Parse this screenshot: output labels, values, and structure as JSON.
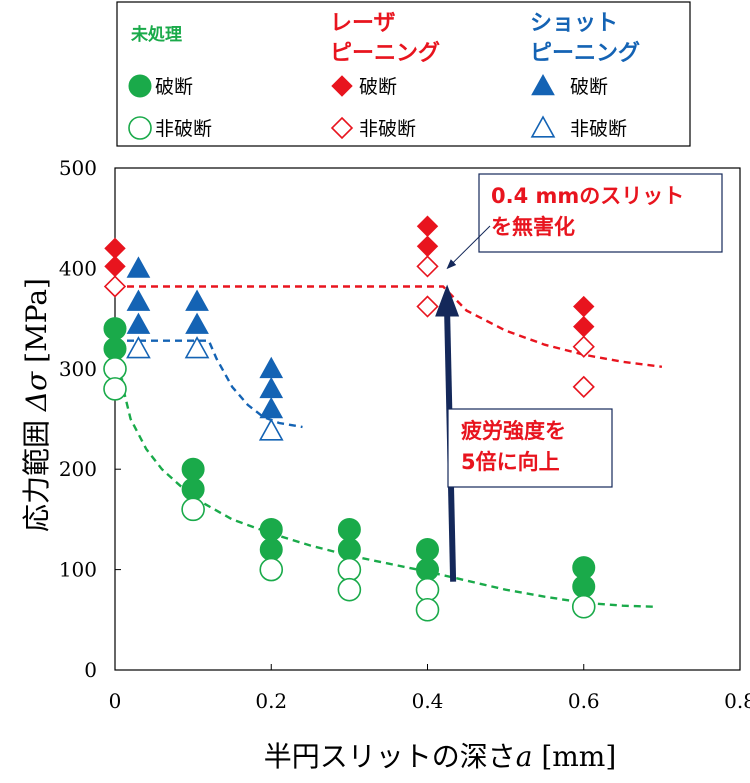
{
  "chart_data": {
    "type": "scatter",
    "xlabel": "半円スリットの深さ",
    "xlabel_var": "a",
    "xlabel_unit": "[mm]",
    "ylabel": "応力範囲",
    "ylabel_var": "Δσ",
    "ylabel_unit": "[MPa]",
    "xlim": [
      0,
      0.8
    ],
    "ylim": [
      0,
      500
    ],
    "x_ticks": [
      "0",
      "0.2",
      "0.4",
      "0.6",
      "0.8"
    ],
    "y_ticks": [
      "0",
      "100",
      "200",
      "300",
      "400",
      "500"
    ],
    "x_tick_values": [
      0,
      0.2,
      0.4,
      0.6,
      0.8
    ],
    "y_tick_values": [
      0,
      100,
      200,
      300,
      400,
      500
    ],
    "grid": false,
    "legend": {
      "placement": "top",
      "groups": [
        {
          "title": "未処理",
          "color": "#1aaa4a",
          "broken_label": "破断",
          "unbroken_label": "非破断",
          "marker": "circle"
        },
        {
          "title": "レーザ\nピーニング",
          "color": "#e8141e",
          "broken_label": "破断",
          "unbroken_label": "非破断",
          "marker": "diamond"
        },
        {
          "title": "ショット\nピーニング",
          "color": "#1463b4",
          "broken_label": "破断",
          "unbroken_label": "非破断",
          "marker": "triangle"
        }
      ]
    },
    "series": [
      {
        "name": "未処理 破断",
        "color": "#1aaa4a",
        "marker": "circle",
        "filled": true,
        "points": [
          [
            0,
            340
          ],
          [
            0,
            320
          ],
          [
            0.1,
            200
          ],
          [
            0.1,
            180
          ],
          [
            0.2,
            140
          ],
          [
            0.2,
            120
          ],
          [
            0.3,
            140
          ],
          [
            0.3,
            120
          ],
          [
            0.4,
            120
          ],
          [
            0.4,
            100
          ],
          [
            0.6,
            102
          ],
          [
            0.6,
            83
          ]
        ]
      },
      {
        "name": "未処理 非破断",
        "color": "#1aaa4a",
        "marker": "circle",
        "filled": false,
        "points": [
          [
            0,
            300
          ],
          [
            0,
            280
          ],
          [
            0.1,
            160
          ],
          [
            0.2,
            100
          ],
          [
            0.3,
            100
          ],
          [
            0.3,
            80
          ],
          [
            0.4,
            80
          ],
          [
            0.4,
            60
          ],
          [
            0.6,
            63
          ]
        ]
      },
      {
        "name": "レーザピーニング 破断",
        "color": "#e8141e",
        "marker": "diamond",
        "filled": true,
        "points": [
          [
            0,
            420
          ],
          [
            0,
            402
          ],
          [
            0.4,
            442
          ],
          [
            0.4,
            422
          ],
          [
            0.6,
            362
          ],
          [
            0.6,
            342
          ]
        ]
      },
      {
        "name": "レーザピーニング 非破断",
        "color": "#e8141e",
        "marker": "diamond",
        "filled": false,
        "points": [
          [
            0,
            382
          ],
          [
            0.4,
            402
          ],
          [
            0.4,
            362
          ],
          [
            0.6,
            322
          ],
          [
            0.6,
            282
          ]
        ]
      },
      {
        "name": "ショットピーニング 破断",
        "color": "#1463b4",
        "marker": "triangle",
        "filled": true,
        "points": [
          [
            0.03,
            400
          ],
          [
            0.03,
            367
          ],
          [
            0.03,
            344
          ],
          [
            0.105,
            367
          ],
          [
            0.105,
            344
          ],
          [
            0.2,
            300
          ],
          [
            0.2,
            280
          ],
          [
            0.2,
            260
          ]
        ]
      },
      {
        "name": "ショットピーニング 非破断",
        "color": "#1463b4",
        "marker": "triangle",
        "filled": false,
        "points": [
          [
            0.03,
            320
          ],
          [
            0.105,
            320
          ],
          [
            0.2,
            238
          ]
        ]
      }
    ],
    "trend_lines": [
      {
        "color": "#1aaa4a",
        "points": [
          [
            0.002,
            338
          ],
          [
            0.01,
            282
          ],
          [
            0.02,
            250
          ],
          [
            0.04,
            220
          ],
          [
            0.06,
            200
          ],
          [
            0.08,
            186
          ],
          [
            0.1,
            172
          ],
          [
            0.15,
            150
          ],
          [
            0.2,
            136
          ],
          [
            0.25,
            124
          ],
          [
            0.3,
            114
          ],
          [
            0.35,
            106
          ],
          [
            0.4,
            98
          ],
          [
            0.45,
            89
          ],
          [
            0.5,
            80
          ],
          [
            0.55,
            73
          ],
          [
            0.6,
            67
          ],
          [
            0.65,
            64
          ],
          [
            0.69,
            63
          ]
        ]
      },
      {
        "color": "#e8141e",
        "points": [
          [
            0,
            382
          ],
          [
            0.42,
            382
          ],
          [
            0.45,
            358
          ],
          [
            0.5,
            338
          ],
          [
            0.55,
            324
          ],
          [
            0.6,
            314
          ],
          [
            0.65,
            307
          ],
          [
            0.7,
            302
          ]
        ]
      },
      {
        "color": "#1463b4",
        "points": [
          [
            0,
            328
          ],
          [
            0.12,
            328
          ],
          [
            0.13,
            310
          ],
          [
            0.15,
            282
          ],
          [
            0.17,
            264
          ],
          [
            0.19,
            252
          ],
          [
            0.21,
            246
          ],
          [
            0.24,
            242
          ]
        ]
      }
    ],
    "annotations": [
      {
        "text": "0.4 mmのスリット\nを無害化",
        "color": "#e8141e",
        "box": true,
        "target": [
          0.415,
          392
        ]
      },
      {
        "text": "疲労強度を\n5倍に向上",
        "color": "#e8141e",
        "box": true,
        "arrow_from": [
          0.42,
          88
        ],
        "arrow_to": [
          0.42,
          378
        ],
        "arrow_color": "#14285a"
      }
    ]
  }
}
